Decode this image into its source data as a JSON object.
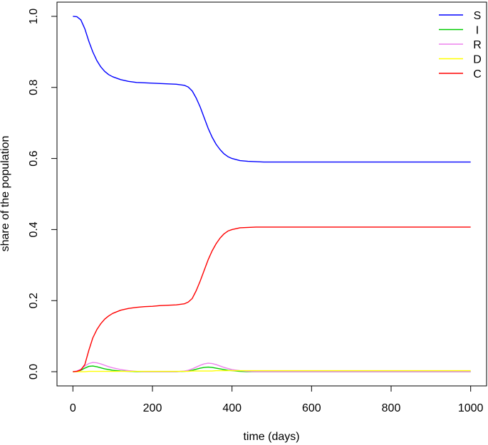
{
  "chart_data": {
    "type": "line",
    "xlabel": "time (days)",
    "ylabel": "share of the population",
    "xlim": [
      -40,
      1040
    ],
    "ylim": [
      -0.04,
      1.04
    ],
    "xticks": [
      "0",
      "200",
      "400",
      "600",
      "800",
      "1000"
    ],
    "yticks": [
      "0.0",
      "0.2",
      "0.4",
      "0.6",
      "0.8",
      "1.0"
    ],
    "legend_position": "top-right",
    "x": [
      0,
      10,
      20,
      30,
      40,
      50,
      60,
      70,
      80,
      90,
      100,
      120,
      140,
      160,
      180,
      200,
      220,
      240,
      260,
      280,
      290,
      300,
      310,
      320,
      330,
      340,
      350,
      360,
      370,
      380,
      390,
      400,
      420,
      440,
      460,
      480,
      500,
      550,
      600,
      700,
      800,
      900,
      1000
    ],
    "series": [
      {
        "name": "S",
        "color": "#0000FF",
        "values": [
          1.0,
          0.999,
          0.99,
          0.965,
          0.93,
          0.9,
          0.876,
          0.858,
          0.845,
          0.836,
          0.83,
          0.822,
          0.817,
          0.814,
          0.813,
          0.812,
          0.811,
          0.81,
          0.809,
          0.806,
          0.801,
          0.79,
          0.77,
          0.745,
          0.715,
          0.685,
          0.66,
          0.64,
          0.625,
          0.613,
          0.605,
          0.6,
          0.594,
          0.592,
          0.591,
          0.59,
          0.59,
          0.59,
          0.59,
          0.59,
          0.59,
          0.59,
          0.59
        ]
      },
      {
        "name": "I",
        "color": "#00CC00",
        "values": [
          0.0,
          0.001,
          0.004,
          0.01,
          0.015,
          0.016,
          0.014,
          0.011,
          0.008,
          0.006,
          0.004,
          0.002,
          0.001,
          0.0,
          0.0,
          0.0,
          0.0,
          0.0,
          0.0,
          0.001,
          0.002,
          0.004,
          0.007,
          0.01,
          0.012,
          0.013,
          0.012,
          0.01,
          0.008,
          0.006,
          0.004,
          0.003,
          0.001,
          0.0,
          0.0,
          0.0,
          0.0,
          0.0,
          0.0,
          0.0,
          0.0,
          0.0,
          0.0
        ]
      },
      {
        "name": "R",
        "color": "#EE82EE",
        "values": [
          0.0,
          0.002,
          0.007,
          0.016,
          0.023,
          0.026,
          0.025,
          0.022,
          0.018,
          0.014,
          0.011,
          0.006,
          0.003,
          0.001,
          0.0,
          0.0,
          0.0,
          0.0,
          0.0,
          0.002,
          0.004,
          0.008,
          0.013,
          0.018,
          0.022,
          0.024,
          0.023,
          0.02,
          0.016,
          0.012,
          0.009,
          0.006,
          0.003,
          0.001,
          0.0,
          0.0,
          0.0,
          0.0,
          0.0,
          0.0,
          0.0,
          0.0,
          0.0
        ]
      },
      {
        "name": "D",
        "color": "#FFFF00",
        "values": [
          0.0,
          0.0,
          0.0,
          0.0,
          0.001,
          0.001,
          0.001,
          0.001,
          0.001,
          0.001,
          0.001,
          0.001,
          0.001,
          0.001,
          0.001,
          0.001,
          0.001,
          0.001,
          0.001,
          0.001,
          0.001,
          0.002,
          0.002,
          0.002,
          0.002,
          0.002,
          0.002,
          0.003,
          0.003,
          0.003,
          0.003,
          0.003,
          0.003,
          0.003,
          0.003,
          0.003,
          0.003,
          0.003,
          0.003,
          0.003,
          0.003,
          0.003,
          0.003
        ]
      },
      {
        "name": "C",
        "color": "#FF0000",
        "values": [
          0.0,
          0.001,
          0.005,
          0.02,
          0.06,
          0.095,
          0.118,
          0.135,
          0.148,
          0.157,
          0.164,
          0.173,
          0.178,
          0.181,
          0.183,
          0.184,
          0.186,
          0.187,
          0.188,
          0.191,
          0.196,
          0.206,
          0.228,
          0.255,
          0.285,
          0.315,
          0.34,
          0.36,
          0.376,
          0.388,
          0.396,
          0.4,
          0.405,
          0.406,
          0.407,
          0.407,
          0.407,
          0.407,
          0.407,
          0.407,
          0.407,
          0.407,
          0.407
        ]
      }
    ]
  }
}
